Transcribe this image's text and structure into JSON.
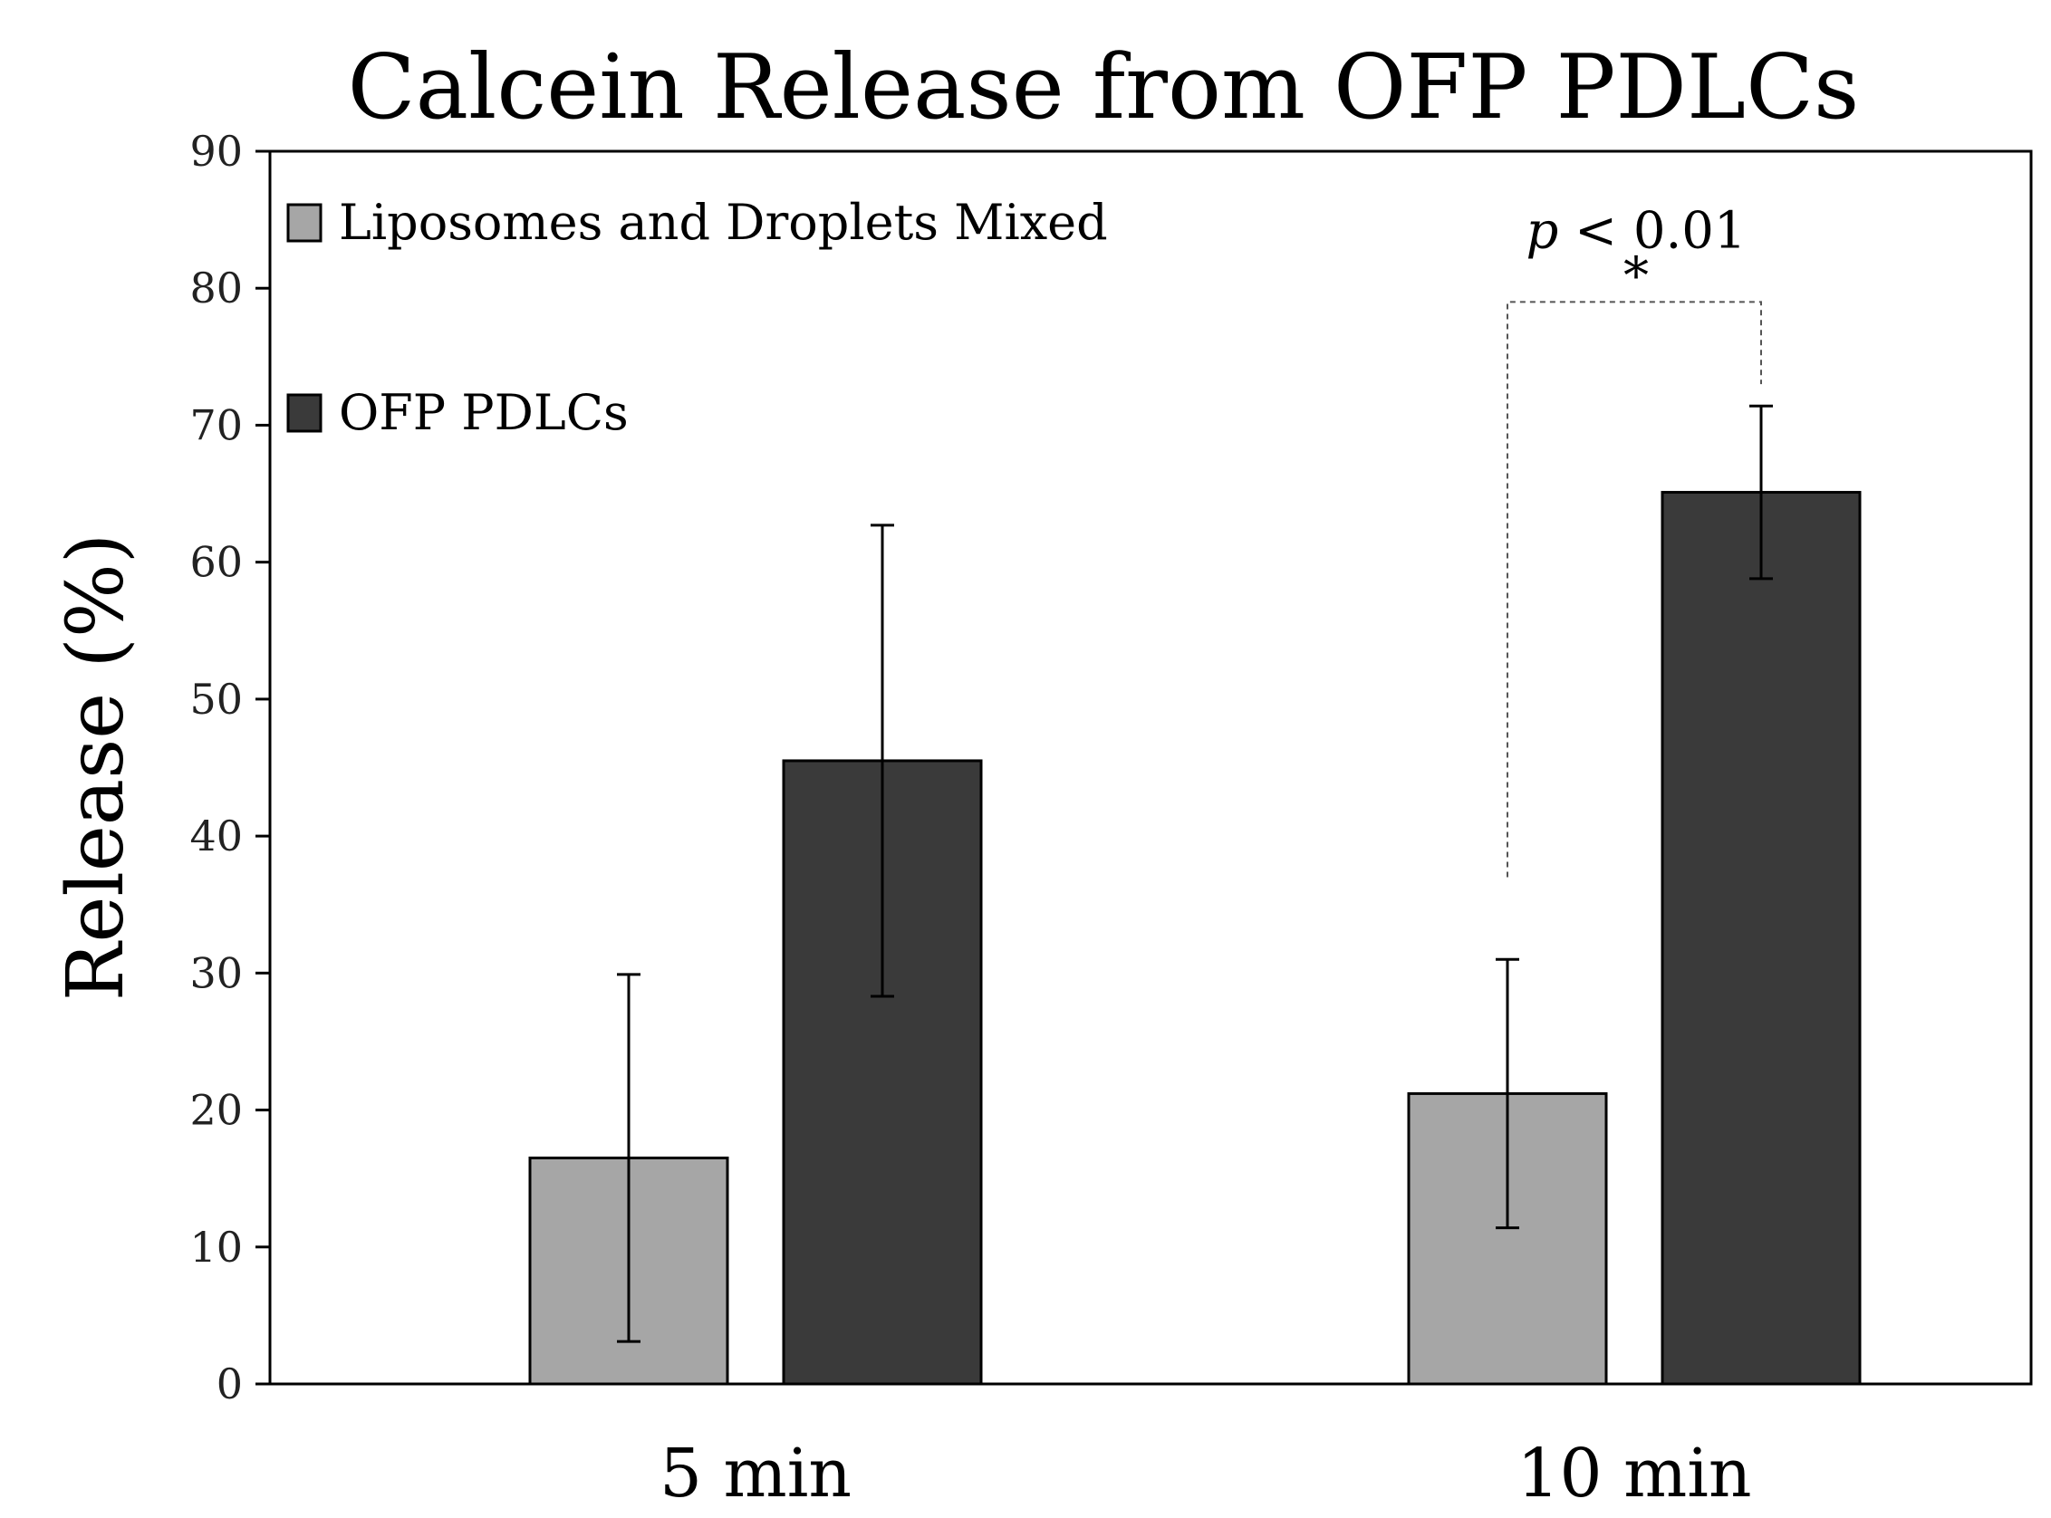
{
  "chart_data": {
    "type": "bar",
    "title": "Calcein Release from OFP PDLCs",
    "xlabel": "",
    "ylabel": "Release (%)",
    "ylim": [
      0,
      90
    ],
    "yticks": [
      0,
      10,
      20,
      30,
      40,
      50,
      60,
      70,
      80,
      90
    ],
    "grid": false,
    "legend_position": "top-left",
    "categories": [
      "5 min",
      "10 min"
    ],
    "series": [
      {
        "name": "Liposomes and Droplets Mixed",
        "color": "#a6a6a6",
        "values": [
          16.5,
          21.2
        ],
        "error": [
          13.4,
          9.8
        ]
      },
      {
        "name": "OFP PDLCs",
        "color": "#3a3a3a",
        "values": [
          45.5,
          65.1
        ],
        "error": [
          17.2,
          6.3
        ]
      }
    ],
    "annotation": {
      "category": "10 min",
      "p_symbol": "p",
      "p_rest": " < 0.01",
      "star": "*",
      "bracket_start_y": 37,
      "bracket_end_y": 73,
      "bracket_top_y": 79
    }
  }
}
